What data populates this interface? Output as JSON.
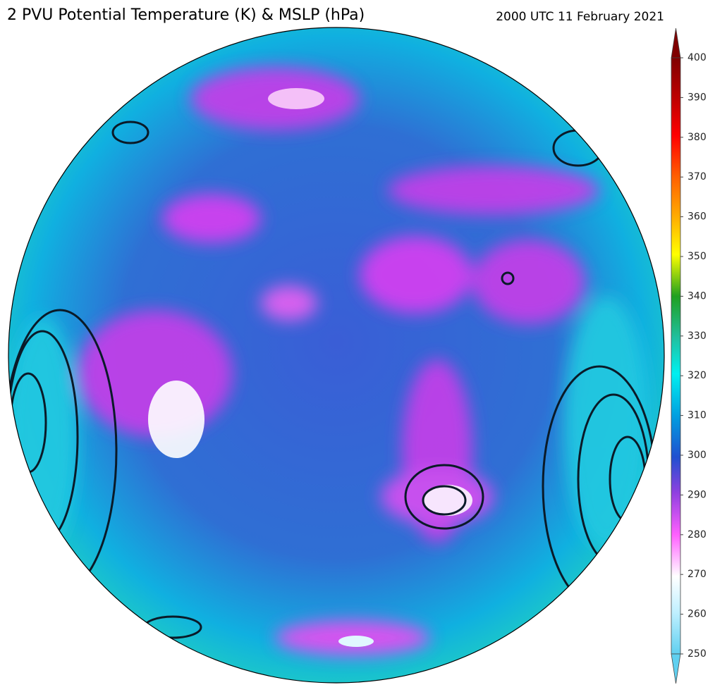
{
  "title": "2 PVU Potential Temperature (K) & MSLP (hPa)",
  "timestamp": "2000 UTC 11 February 2021",
  "colorbar": {
    "range": [
      250,
      400
    ],
    "ticks": [
      250,
      260,
      270,
      280,
      290,
      300,
      310,
      320,
      330,
      340,
      350,
      360,
      370,
      380,
      390,
      400
    ]
  }
}
